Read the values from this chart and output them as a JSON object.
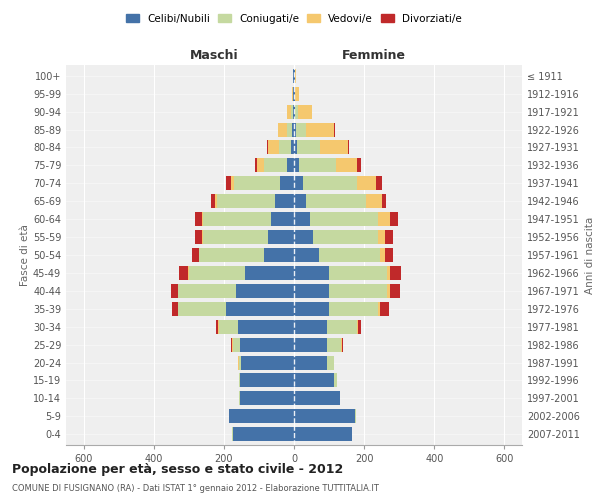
{
  "age_groups": [
    "0-4",
    "5-9",
    "10-14",
    "15-19",
    "20-24",
    "25-29",
    "30-34",
    "35-39",
    "40-44",
    "45-49",
    "50-54",
    "55-59",
    "60-64",
    "65-69",
    "70-74",
    "75-79",
    "80-84",
    "85-89",
    "90-94",
    "95-99",
    "100+"
  ],
  "birth_years": [
    "2007-2011",
    "2002-2006",
    "1997-2001",
    "1992-1996",
    "1987-1991",
    "1982-1986",
    "1977-1981",
    "1972-1976",
    "1967-1971",
    "1962-1966",
    "1957-1961",
    "1952-1956",
    "1947-1951",
    "1942-1946",
    "1937-1941",
    "1932-1936",
    "1927-1931",
    "1922-1926",
    "1917-1921",
    "1912-1916",
    "≤ 1911"
  ],
  "maschi": {
    "celibi": [
      175,
      185,
      155,
      155,
      150,
      155,
      160,
      195,
      165,
      140,
      85,
      75,
      65,
      55,
      40,
      20,
      8,
      5,
      3,
      2,
      2
    ],
    "coniugati": [
      1,
      1,
      1,
      3,
      8,
      20,
      55,
      135,
      165,
      160,
      185,
      185,
      195,
      165,
      130,
      65,
      35,
      15,
      5,
      2,
      1
    ],
    "vedovi": [
      0,
      0,
      0,
      0,
      1,
      1,
      1,
      1,
      2,
      2,
      2,
      2,
      3,
      5,
      10,
      20,
      30,
      25,
      12,
      3,
      1
    ],
    "divorziati": [
      0,
      0,
      0,
      0,
      1,
      3,
      5,
      18,
      18,
      25,
      20,
      20,
      18,
      12,
      15,
      5,
      3,
      2,
      0,
      0,
      0
    ]
  },
  "femmine": {
    "nubili": [
      165,
      175,
      130,
      115,
      95,
      95,
      95,
      100,
      100,
      100,
      70,
      55,
      45,
      35,
      25,
      15,
      8,
      5,
      3,
      2,
      2
    ],
    "coniugate": [
      1,
      2,
      2,
      8,
      18,
      40,
      85,
      140,
      165,
      165,
      175,
      185,
      195,
      170,
      155,
      105,
      65,
      30,
      8,
      2,
      1
    ],
    "vedove": [
      0,
      0,
      0,
      1,
      1,
      2,
      3,
      5,
      8,
      10,
      15,
      20,
      35,
      45,
      55,
      60,
      80,
      80,
      40,
      10,
      3
    ],
    "divorziate": [
      0,
      0,
      0,
      0,
      1,
      3,
      8,
      25,
      30,
      30,
      22,
      22,
      22,
      12,
      15,
      10,
      5,
      3,
      1,
      0,
      0
    ]
  },
  "colors": {
    "celibi_nubili": "#4472a8",
    "coniugati": "#c5d9a0",
    "vedovi": "#f5c86e",
    "divorziati": "#c0292a"
  },
  "title": "Popolazione per età, sesso e stato civile - 2012",
  "subtitle": "COMUNE DI FUSIGNANO (RA) - Dati ISTAT 1° gennaio 2012 - Elaborazione TUTTITALIA.IT",
  "xlabel_left": "Maschi",
  "xlabel_right": "Femmine",
  "ylabel_left": "Fasce di età",
  "ylabel_right": "Anni di nascita",
  "xlim": 650,
  "legend_labels": [
    "Celibi/Nubili",
    "Coniugati/e",
    "Vedovi/e",
    "Divorziati/e"
  ],
  "background_color": "#ffffff",
  "grid_color": "#cccccc"
}
